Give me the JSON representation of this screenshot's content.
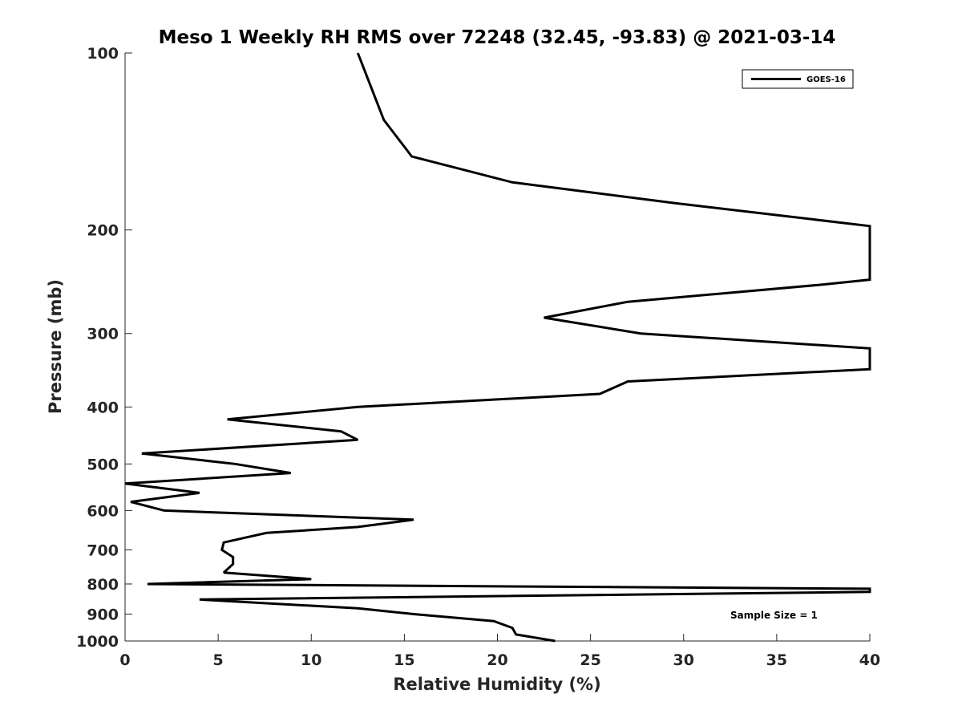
{
  "chart_data": {
    "type": "line",
    "title": "Meso 1 Weekly RH RMS over 72248 (32.45, -93.83) @ 2021-03-14",
    "xlabel": "Relative Humidity (%)",
    "ylabel": "Pressure (mb)",
    "xlim": [
      0,
      40
    ],
    "ylim": [
      100,
      1000
    ],
    "y_scale": "log",
    "y_reversed": true,
    "x_ticks": [
      0,
      5,
      10,
      15,
      20,
      25,
      30,
      35,
      40
    ],
    "y_ticks": [
      100,
      200,
      300,
      400,
      500,
      600,
      700,
      800,
      900,
      1000
    ],
    "grid": false,
    "legend_position": "top-right",
    "series": [
      {
        "name": "GOES-16",
        "color": "#000000",
        "points": [
          [
            23.1,
            1000
          ],
          [
            21.0,
            975
          ],
          [
            20.8,
            950
          ],
          [
            19.8,
            925
          ],
          [
            15.5,
            900
          ],
          [
            12.5,
            880
          ],
          [
            4.0,
            850
          ],
          [
            40,
            825
          ],
          [
            40,
            815
          ],
          [
            1.2,
            800
          ],
          [
            10.0,
            785
          ],
          [
            5.3,
            765
          ],
          [
            5.8,
            740
          ],
          [
            5.8,
            720
          ],
          [
            5.2,
            700
          ],
          [
            5.3,
            680
          ],
          [
            7.6,
            655
          ],
          [
            12.5,
            640
          ],
          [
            15.5,
            622
          ],
          [
            2.1,
            600
          ],
          [
            0.3,
            580
          ],
          [
            4.0,
            560
          ],
          [
            0.0,
            540
          ],
          [
            8.9,
            518
          ],
          [
            5.9,
            500
          ],
          [
            0.9,
            480
          ],
          [
            12.5,
            455
          ],
          [
            11.6,
            440
          ],
          [
            5.5,
            420
          ],
          [
            12.5,
            400
          ],
          [
            25.5,
            380
          ],
          [
            27.0,
            362
          ],
          [
            40,
            345
          ],
          [
            40,
            318
          ],
          [
            27.7,
            300
          ],
          [
            22.5,
            282
          ],
          [
            27.0,
            265
          ],
          [
            37.3,
            248
          ],
          [
            40,
            243
          ],
          [
            40,
            197
          ],
          [
            29.5,
            180
          ],
          [
            20.8,
            166
          ],
          [
            15.4,
            150
          ],
          [
            13.9,
            130
          ],
          [
            12.5,
            100
          ]
        ]
      }
    ],
    "annotations": [
      "Sample Size = 1"
    ]
  }
}
